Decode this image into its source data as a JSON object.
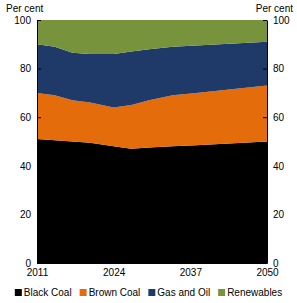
{
  "chart_data": {
    "type": "area",
    "stacked": true,
    "y_label": "Per cent",
    "y2_label": "Per cent",
    "x": [
      2011,
      2014,
      2017,
      2020,
      2024,
      2027,
      2030,
      2034,
      2038,
      2042,
      2046,
      2050
    ],
    "xlim": [
      2011,
      2050
    ],
    "xticks": [
      2011,
      2024,
      2037,
      2050
    ],
    "ylim": [
      0,
      100
    ],
    "yticks": [
      0,
      20,
      40,
      60,
      80,
      100
    ],
    "y2lim": [
      0,
      100
    ],
    "y2ticks": [
      0,
      20,
      40,
      60,
      80,
      100
    ],
    "legend": "bottom",
    "series": [
      {
        "name": "Black Coal",
        "color": "#000000",
        "values": [
          51,
          50.5,
          50,
          49.5,
          48,
          47,
          47.5,
          48,
          48.5,
          49,
          49.5,
          50
        ]
      },
      {
        "name": "Brown Coal",
        "color": "#e46c0a",
        "values": [
          19,
          18.5,
          17,
          16.5,
          16,
          18,
          19.5,
          21,
          21.5,
          22,
          22.5,
          23
        ]
      },
      {
        "name": "Gas and Oil",
        "color": "#1f3a68",
        "values": [
          20,
          20,
          19.5,
          20,
          22,
          22,
          21,
          20,
          19.5,
          19,
          18.5,
          18
        ]
      },
      {
        "name": "Renewables",
        "color": "#77933c",
        "values": [
          10,
          11,
          13.5,
          14,
          14,
          13,
          12,
          11,
          10.5,
          10,
          9.5,
          9
        ]
      }
    ]
  }
}
